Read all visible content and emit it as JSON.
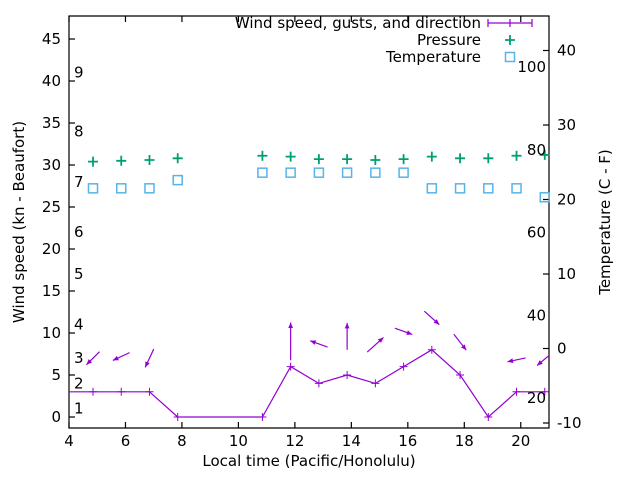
{
  "chart_data": {
    "type": "line",
    "title": "",
    "xlabel": "Local time (Pacific/Honolulu)",
    "ylabel_left": "Wind speed (kn - Beaufort)",
    "ylabel_right": "Temperature (C - F)",
    "grid": false,
    "legend_position": "top-right-inside",
    "xlim": [
      4,
      21
    ],
    "ylim_kn": [
      -1.31,
      47.74
    ],
    "ylim_c": [
      -10.67,
      44.63
    ],
    "x_ticks": [
      4,
      6,
      8,
      10,
      12,
      14,
      16,
      18,
      20
    ],
    "left_ticks_kn": [
      0,
      5,
      10,
      15,
      20,
      25,
      30,
      35,
      40,
      45
    ],
    "right_ticks_c": [
      -10,
      0,
      10,
      20,
      30,
      40
    ],
    "beaufort_labels": [
      {
        "label": "1",
        "kn": 1
      },
      {
        "label": "2",
        "kn": 4
      },
      {
        "label": "3",
        "kn": 7
      },
      {
        "label": "4",
        "kn": 11
      },
      {
        "label": "5",
        "kn": 17
      },
      {
        "label": "6",
        "kn": 22
      },
      {
        "label": "7",
        "kn": 28
      },
      {
        "label": "8",
        "kn": 34
      },
      {
        "label": "9",
        "kn": 41
      }
    ],
    "fahrenheit_labels": [
      {
        "label": "100",
        "f": 100
      },
      {
        "label": "80",
        "f": 80
      },
      {
        "label": "60",
        "f": 60
      },
      {
        "label": "40",
        "f": 40
      },
      {
        "label": "20",
        "f": 20
      }
    ],
    "x": [
      4.85,
      5.85,
      6.85,
      7.85,
      10.85,
      11.85,
      12.85,
      13.85,
      14.85,
      15.85,
      16.85,
      17.85,
      18.85,
      19.85,
      20.85
    ],
    "series": [
      {
        "name": "Wind speed, gusts, and direction",
        "style": "linespoints",
        "marker": "plus",
        "color": "#9400d3",
        "axis": "left",
        "leadin": [
          4.0,
          3
        ],
        "values": [
          3,
          3,
          3,
          0,
          0,
          6,
          4,
          5,
          4,
          6,
          8,
          5,
          0,
          3,
          3
        ]
      },
      {
        "name": "Pressure",
        "style": "points",
        "marker": "plus",
        "color": "#009e73",
        "axis": "left",
        "values": [
          30.4,
          30.5,
          30.6,
          30.8,
          31.1,
          31.0,
          30.7,
          30.7,
          30.6,
          30.7,
          31.0,
          30.8,
          30.8,
          31.1,
          31.2
        ]
      },
      {
        "name": "Temperature",
        "style": "points",
        "marker": "square",
        "color": "#56b4e9",
        "axis": "right",
        "values": [
          21.5,
          21.5,
          21.5,
          22.6,
          23.6,
          23.6,
          23.6,
          23.6,
          23.6,
          23.6,
          21.5,
          21.5,
          21.5,
          21.5,
          20.3
        ]
      }
    ],
    "wind_arrows": [
      {
        "t": 4.85,
        "y": 7.0,
        "angle": -135,
        "len": 2.2
      },
      {
        "t": 5.85,
        "y": 7.2,
        "angle": -155,
        "len": 2.2
      },
      {
        "t": 6.85,
        "y": 7.0,
        "angle": -115,
        "len": 2.4
      },
      {
        "t": 11.85,
        "y": 9.0,
        "angle": 90,
        "len": 4.5
      },
      {
        "t": 12.85,
        "y": 8.7,
        "angle": 160,
        "len": 2.2
      },
      {
        "t": 13.85,
        "y": 9.6,
        "angle": 90,
        "len": 3.2
      },
      {
        "t": 14.85,
        "y": 8.6,
        "angle": 42,
        "len": 2.6
      },
      {
        "t": 15.85,
        "y": 10.2,
        "angle": -20,
        "len": 2.2
      },
      {
        "t": 16.85,
        "y": 11.8,
        "angle": -42,
        "len": 2.4
      },
      {
        "t": 17.85,
        "y": 8.9,
        "angle": -52,
        "len": 2.4
      },
      {
        "t": 19.85,
        "y": 6.8,
        "angle": -168,
        "len": 2.2
      },
      {
        "t": 20.85,
        "y": 6.9,
        "angle": -140,
        "len": 2.4
      }
    ]
  }
}
